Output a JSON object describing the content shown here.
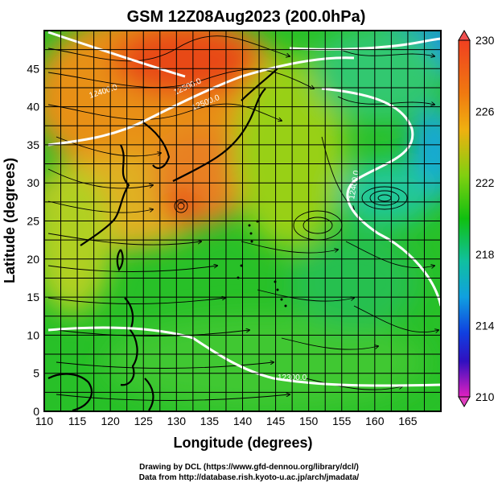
{
  "title": "GSM 12Z08Aug2023 (200.0hPa)",
  "xlabel": "Longitude (degrees)",
  "ylabel": "Latitude  (degrees)",
  "x_ticks": [
    "110",
    "115",
    "120",
    "125",
    "130",
    "135",
    "140",
    "145",
    "150",
    "155",
    "160",
    "165"
  ],
  "y_ticks": [
    "0",
    "5",
    "10",
    "15",
    "20",
    "25",
    "30",
    "35",
    "40",
    "45"
  ],
  "colorbar": {
    "ticks": [
      "230",
      "226",
      "222",
      "218",
      "214",
      "210"
    ],
    "min": 210,
    "max": 230
  },
  "contour_labels": [
    "12400.0",
    "12500.0",
    "12500.0",
    "12400.0",
    "12300.0"
  ],
  "credits": {
    "line1": "Drawing by DCL (https://www.gfd-dennou.org/library/dcl/)",
    "line2": "Data from http://database.rish.kyoto-u.ac.jp/arch/jmadata/"
  },
  "chart_data": {
    "type": "heatmap",
    "title": "GSM 12Z08Aug2023 (200.0hPa)",
    "xlabel": "Longitude (degrees)",
    "ylabel": "Latitude  (degrees)",
    "xlim": [
      110,
      170
    ],
    "ylim": [
      0,
      50
    ],
    "colorbar_range": [
      210,
      230
    ],
    "overlays": [
      "streamlines",
      "geopotential contours",
      "coastlines"
    ],
    "grid": true
  }
}
